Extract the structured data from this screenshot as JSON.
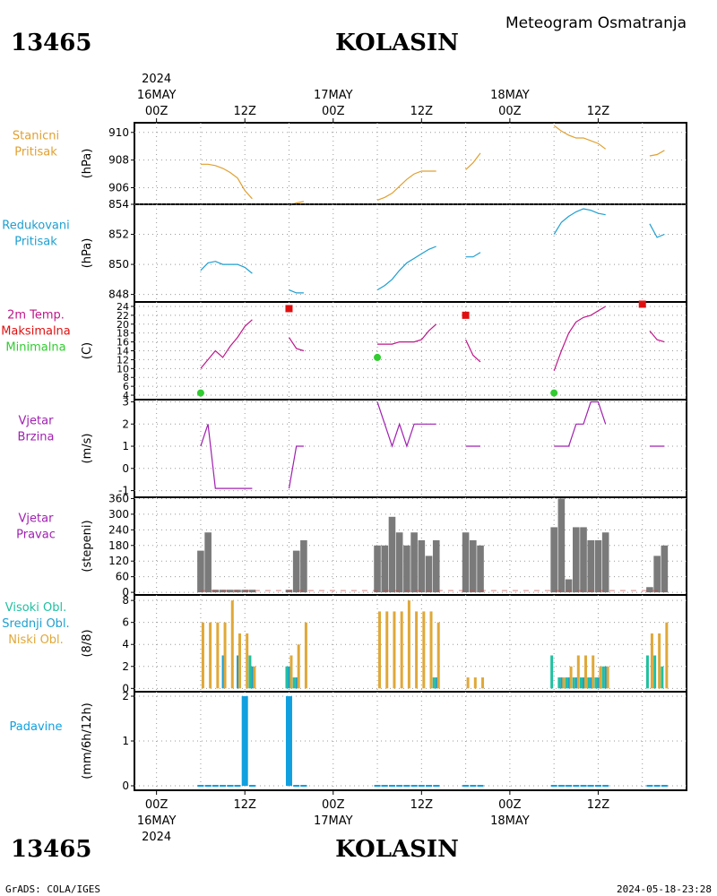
{
  "header": {
    "station_id": "13465",
    "station_name": "KOLASIN",
    "meteogram_title": "Meteogram Osmatranja"
  },
  "footer": {
    "station_id": "13465",
    "station_name": "KOLASIN",
    "credit": "GrADS: COLA/IGES",
    "timestamp": "2024-05-18-23:28"
  },
  "colors": {
    "pressure_station": "#e0a030",
    "pressure_reduced": "#1e9fd0",
    "temperature": "#c0158a",
    "tmax": "#e01010",
    "tmin": "#30cc30",
    "wind": "#a020b0",
    "wind_dir_bar": "#7a7a7a",
    "cloud_high": "#20c0a0",
    "cloud_mid": "#1e9fd0",
    "cloud_low": "#e0a838",
    "precip": "#10a0e0"
  },
  "time_axis": {
    "top_year": "2024",
    "top_ticks": [
      {
        "hour": 0,
        "label": "00Z",
        "date": "16MAY"
      },
      {
        "hour": 12,
        "label": "12Z"
      },
      {
        "hour": 24,
        "label": "00Z",
        "date": "17MAY"
      },
      {
        "hour": 36,
        "label": "12Z"
      },
      {
        "hour": 48,
        "label": "00Z",
        "date": "18MAY"
      },
      {
        "hour": 60,
        "label": "12Z"
      }
    ],
    "bottom_year": "2024",
    "range_hours": [
      -3,
      72
    ]
  },
  "chart_data": [
    {
      "type": "line",
      "panel": "pressure_station",
      "labels": [
        "Stanicni",
        "Pritisak"
      ],
      "ylabel": "(hPa)",
      "ylim": [
        904.8,
        910.7
      ],
      "yticks": [
        906,
        908,
        910
      ],
      "series": [
        {
          "segments": [
            [
              [
                6,
                907.7
              ],
              [
                7,
                907.7
              ],
              [
                8,
                907.6
              ],
              [
                9,
                907.4
              ],
              [
                10,
                907.1
              ],
              [
                11,
                906.7
              ],
              [
                12,
                905.8
              ],
              [
                13,
                905.2
              ]
            ],
            [
              [
                18,
                904.7
              ],
              [
                19,
                904.9
              ],
              [
                20,
                905.0
              ]
            ],
            [
              [
                30,
                905.1
              ],
              [
                31,
                905.3
              ],
              [
                32,
                905.6
              ],
              [
                33,
                906.1
              ],
              [
                34,
                906.6
              ],
              [
                35,
                907.0
              ],
              [
                36,
                907.2
              ],
              [
                37,
                907.2
              ],
              [
                38,
                907.2
              ]
            ],
            [
              [
                42,
                907.3
              ],
              [
                43,
                907.8
              ],
              [
                44,
                908.5
              ]
            ],
            [
              [
                54,
                910.5
              ],
              [
                55,
                910.1
              ],
              [
                56,
                909.8
              ],
              [
                57,
                909.6
              ],
              [
                58,
                909.6
              ],
              [
                59,
                909.4
              ],
              [
                60,
                909.2
              ],
              [
                61,
                908.8
              ]
            ],
            [
              [
                67,
                908.3
              ],
              [
                68,
                908.4
              ],
              [
                69,
                908.7
              ]
            ]
          ]
        }
      ]
    },
    {
      "type": "line",
      "panel": "pressure_reduced",
      "labels": [
        "Redukovani",
        "Pritisak"
      ],
      "ylabel": "(hPa)",
      "ylim": [
        847.5,
        854.0
      ],
      "yticks": [
        848,
        850,
        852,
        854
      ],
      "series": [
        {
          "segments": [
            [
              [
                6,
                849.6
              ],
              [
                7,
                850.1
              ],
              [
                8,
                850.2
              ],
              [
                9,
                850.0
              ],
              [
                10,
                850.0
              ],
              [
                11,
                850.0
              ],
              [
                12,
                849.8
              ],
              [
                13,
                849.4
              ]
            ],
            [
              [
                18,
                848.3
              ],
              [
                19,
                848.1
              ],
              [
                20,
                848.1
              ]
            ],
            [
              [
                30,
                848.3
              ],
              [
                31,
                848.6
              ],
              [
                32,
                849.0
              ],
              [
                33,
                849.6
              ],
              [
                34,
                850.1
              ],
              [
                35,
                850.4
              ],
              [
                36,
                850.7
              ],
              [
                37,
                851.0
              ],
              [
                38,
                851.2
              ]
            ],
            [
              [
                42,
                850.5
              ],
              [
                43,
                850.5
              ],
              [
                44,
                850.8
              ]
            ],
            [
              [
                54,
                852.0
              ],
              [
                55,
                852.8
              ],
              [
                56,
                853.2
              ],
              [
                57,
                853.5
              ],
              [
                58,
                853.7
              ],
              [
                59,
                853.6
              ],
              [
                60,
                853.4
              ],
              [
                61,
                853.3
              ]
            ],
            [
              [
                67,
                852.7
              ],
              [
                68,
                851.8
              ],
              [
                69,
                852.0
              ]
            ]
          ]
        }
      ]
    },
    {
      "type": "line",
      "panel": "temperature",
      "labels": [
        "2m Temp.",
        "Maksimalna",
        "Minimalna"
      ],
      "ylabel": "(C)",
      "ylim": [
        3.0,
        25.0
      ],
      "yticks": [
        4,
        6,
        8,
        10,
        12,
        14,
        16,
        18,
        20,
        22,
        24
      ],
      "series": [
        {
          "name": "2m Temp.",
          "segments": [
            [
              [
                6,
                10.0
              ],
              [
                7,
                12.0
              ],
              [
                8,
                14.0
              ],
              [
                9,
                12.5
              ],
              [
                10,
                15.0
              ],
              [
                11,
                17.0
              ],
              [
                12,
                19.5
              ],
              [
                13,
                21.0
              ]
            ],
            [
              [
                18,
                17.0
              ],
              [
                19,
                14.5
              ],
              [
                20,
                14.0
              ]
            ],
            [
              [
                30,
                15.5
              ],
              [
                31,
                15.5
              ],
              [
                32,
                15.5
              ],
              [
                33,
                16.0
              ],
              [
                34,
                16.0
              ],
              [
                35,
                16.0
              ],
              [
                36,
                16.5
              ],
              [
                37,
                18.5
              ],
              [
                38,
                20.0
              ]
            ],
            [
              [
                42,
                16.5
              ],
              [
                43,
                13.0
              ],
              [
                44,
                11.5
              ]
            ],
            [
              [
                54,
                9.5
              ],
              [
                55,
                14.0
              ],
              [
                56,
                18.0
              ],
              [
                57,
                20.5
              ],
              [
                58,
                21.5
              ],
              [
                59,
                22.0
              ],
              [
                60,
                23.0
              ],
              [
                61,
                24.0
              ]
            ],
            [
              [
                67,
                18.5
              ],
              [
                68,
                16.5
              ],
              [
                69,
                16.0
              ]
            ]
          ]
        },
        {
          "name": "Maksimalna",
          "points": [
            [
              18,
              23.5
            ],
            [
              42,
              22.0
            ],
            [
              66,
              24.5
            ]
          ]
        },
        {
          "name": "Minimalna",
          "points": [
            [
              6,
              4.5
            ],
            [
              30,
              12.5
            ],
            [
              54,
              4.5
            ]
          ]
        }
      ]
    },
    {
      "type": "line",
      "panel": "wind_speed",
      "labels": [
        "Vjetar",
        "Brzina"
      ],
      "ylabel": "(m/s)",
      "ylim": [
        -1.3,
        3.1
      ],
      "yticks": [
        -1,
        0,
        1,
        2,
        3
      ],
      "series": [
        {
          "segments": [
            [
              [
                6,
                1.0
              ],
              [
                7,
                2.0
              ],
              [
                8,
                -0.9
              ],
              [
                9,
                -0.9
              ],
              [
                10,
                -0.9
              ],
              [
                11,
                -0.9
              ],
              [
                12,
                -0.9
              ],
              [
                13,
                -0.9
              ]
            ],
            [
              [
                18,
                -0.9
              ],
              [
                19,
                1.0
              ],
              [
                20,
                1.0
              ]
            ],
            [
              [
                30,
                3.0
              ],
              [
                31,
                2.0
              ],
              [
                32,
                1.0
              ],
              [
                33,
                2.0
              ],
              [
                34,
                1.0
              ],
              [
                35,
                2.0
              ],
              [
                36,
                2.0
              ],
              [
                37,
                2.0
              ],
              [
                38,
                2.0
              ]
            ],
            [
              [
                42,
                1.0
              ],
              [
                43,
                1.0
              ],
              [
                44,
                1.0
              ]
            ],
            [
              [
                54,
                1.0
              ],
              [
                55,
                1.0
              ],
              [
                56,
                1.0
              ],
              [
                57,
                2.0
              ],
              [
                58,
                2.0
              ],
              [
                59,
                3.0
              ],
              [
                60,
                3.0
              ],
              [
                61,
                2.0
              ]
            ],
            [
              [
                67,
                1.0
              ],
              [
                68,
                1.0
              ],
              [
                69,
                1.0
              ]
            ]
          ]
        }
      ]
    },
    {
      "type": "bar",
      "panel": "wind_direction",
      "labels": [
        "Vjetar",
        "Pravac"
      ],
      "ylabel": "(stepeni)",
      "ylim": [
        -10,
        365
      ],
      "yticks": [
        0,
        60,
        120,
        180,
        240,
        300,
        360
      ],
      "x": [
        6,
        7,
        8,
        9,
        10,
        11,
        12,
        13,
        18,
        19,
        20,
        30,
        31,
        32,
        33,
        34,
        35,
        36,
        37,
        38,
        42,
        43,
        44,
        54,
        55,
        56,
        57,
        58,
        59,
        60,
        61,
        67,
        68,
        69
      ],
      "values": [
        160,
        230,
        10,
        10,
        10,
        10,
        10,
        10,
        10,
        160,
        200,
        180,
        180,
        290,
        230,
        180,
        230,
        200,
        140,
        200,
        230,
        200,
        180,
        250,
        360,
        50,
        250,
        250,
        200,
        200,
        230,
        20,
        140,
        180
      ]
    },
    {
      "type": "bar",
      "panel": "clouds",
      "labels": [
        "Visoki Obl.",
        "Srednji Obl.",
        "Niski Obl."
      ],
      "ylabel": "(8/8)",
      "ylim": [
        -0.3,
        8.5
      ],
      "yticks": [
        0,
        2,
        4,
        6,
        8
      ],
      "x": [
        6,
        7,
        8,
        9,
        10,
        11,
        12,
        13,
        18,
        19,
        20,
        30,
        31,
        32,
        33,
        34,
        35,
        36,
        37,
        38,
        42,
        43,
        44,
        54,
        55,
        56,
        57,
        58,
        59,
        60,
        61,
        67,
        68,
        69
      ],
      "series": [
        {
          "name": "Visoki Obl.",
          "values": [
            0,
            0,
            0,
            0,
            0,
            0,
            0,
            3,
            2,
            1,
            0,
            0,
            0,
            0,
            0,
            0,
            0,
            0,
            0,
            1,
            0,
            0,
            0,
            3,
            1,
            1,
            1,
            1,
            1,
            1,
            2,
            3,
            3,
            2
          ]
        },
        {
          "name": "Srednji Obl.",
          "values": [
            0,
            0,
            0,
            3,
            0,
            3,
            0,
            2,
            2,
            1,
            0,
            0,
            0,
            0,
            0,
            0,
            0,
            0,
            0,
            1,
            0,
            0,
            0,
            0,
            1,
            1,
            1,
            1,
            1,
            1,
            2,
            0,
            0,
            0
          ]
        },
        {
          "name": "Niski Obl.",
          "values": [
            6,
            6,
            6,
            6,
            8,
            5,
            5,
            2,
            3,
            4,
            6,
            7,
            7,
            7,
            7,
            8,
            7,
            7,
            7,
            6,
            1,
            1,
            1,
            0,
            1,
            2,
            3,
            3,
            3,
            2,
            2,
            5,
            5,
            6
          ]
        }
      ]
    },
    {
      "type": "bar",
      "panel": "precipitation",
      "labels": [
        "Padavine"
      ],
      "ylabel": "(mm/6h/12h)",
      "ylim": [
        -0.1,
        2.1
      ],
      "yticks": [
        0,
        1,
        2
      ],
      "x": [
        6,
        7,
        8,
        9,
        10,
        11,
        12,
        13,
        18,
        19,
        20,
        30,
        31,
        32,
        33,
        34,
        35,
        36,
        37,
        38,
        42,
        43,
        44,
        54,
        55,
        56,
        57,
        58,
        59,
        60,
        61,
        67,
        68,
        69
      ],
      "values": [
        0,
        0,
        0,
        0,
        0,
        0,
        2.0,
        0,
        2.0,
        0,
        0,
        0,
        0,
        0,
        0,
        0,
        0,
        0,
        0,
        0,
        0,
        0,
        0,
        0,
        0,
        0,
        0,
        0,
        0,
        0,
        0,
        0,
        0,
        0
      ]
    }
  ]
}
